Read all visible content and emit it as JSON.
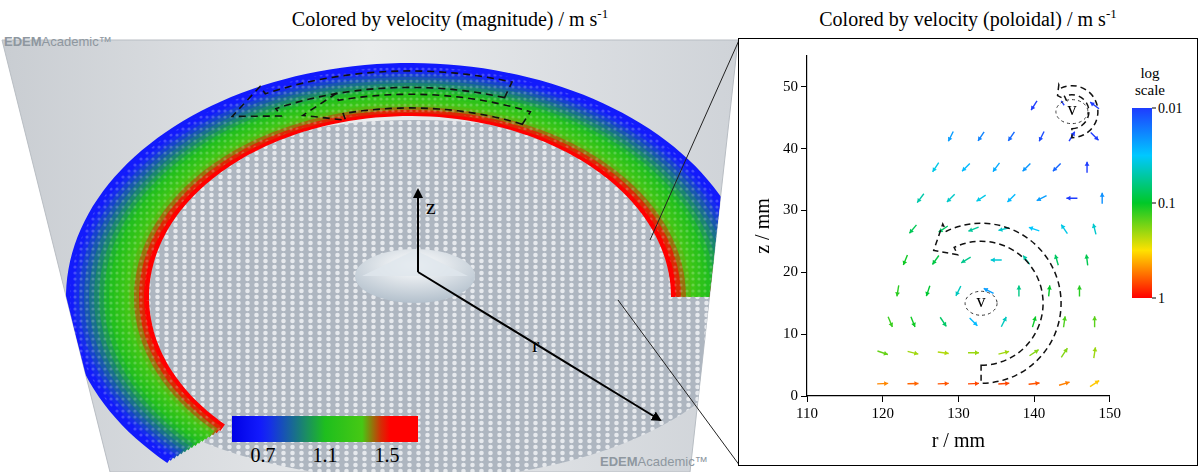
{
  "title_left": {
    "text": "Colored by velocity (magnitude) / m s",
    "superscript": "-1"
  },
  "title_right": {
    "text": "Colored by velocity (poloidal) / m s",
    "superscript": "-1"
  },
  "watermark": [
    "EDEM",
    "Academic™"
  ],
  "axes_3d": {
    "labels": [
      "z",
      "r"
    ]
  },
  "magnitude_colorbar": {
    "range": [
      0.5,
      1.7
    ],
    "ticks": [
      0.7,
      1.1,
      1.5
    ]
  },
  "chart_data": {
    "type": "quiver",
    "xlabel": "r / mm",
    "ylabel": "z / mm",
    "xlim": [
      110,
      150
    ],
    "ylim": [
      0,
      55
    ],
    "xticks": [
      110,
      120,
      130,
      140,
      150
    ],
    "yticks": [
      0,
      10,
      20,
      30,
      40,
      50
    ],
    "grid": false,
    "colorbar": {
      "title": "log scale",
      "log": true,
      "range": [
        0.01,
        1
      ],
      "ticks": [
        0.01,
        0.1,
        1
      ]
    },
    "annotations": [
      {
        "text": "v",
        "r": 133,
        "z": 15
      },
      {
        "text": "v",
        "r": 145,
        "z": 46
      }
    ],
    "vectors": [
      {
        "r": 120,
        "z": 2,
        "vr": 0.5,
        "vz": 0.02
      },
      {
        "r": 124,
        "z": 2,
        "vr": 0.6,
        "vz": 0.02
      },
      {
        "r": 128,
        "z": 2,
        "vr": 0.65,
        "vz": 0.03
      },
      {
        "r": 132,
        "z": 2,
        "vr": 0.7,
        "vz": 0.03
      },
      {
        "r": 136,
        "z": 2,
        "vr": 0.7,
        "vz": 0.05
      },
      {
        "r": 140,
        "z": 2,
        "vr": 0.65,
        "vz": 0.08
      },
      {
        "r": 144,
        "z": 2,
        "vr": 0.5,
        "vz": 0.15
      },
      {
        "r": 148,
        "z": 2,
        "vr": 0.3,
        "vz": 0.2
      },
      {
        "r": 120,
        "z": 7,
        "vr": 0.15,
        "vz": -0.05
      },
      {
        "r": 124,
        "z": 7,
        "vr": 0.2,
        "vz": -0.05
      },
      {
        "r": 128,
        "z": 7,
        "vr": 0.22,
        "vz": -0.03
      },
      {
        "r": 132,
        "z": 7,
        "vr": 0.2,
        "vz": 0.0
      },
      {
        "r": 136,
        "z": 7,
        "vr": 0.2,
        "vz": 0.05
      },
      {
        "r": 140,
        "z": 7,
        "vr": 0.15,
        "vz": 0.1
      },
      {
        "r": 144,
        "z": 7,
        "vr": 0.1,
        "vz": 0.15
      },
      {
        "r": 148,
        "z": 7,
        "vr": 0.03,
        "vz": 0.2
      },
      {
        "r": 121,
        "z": 12,
        "vr": 0.05,
        "vz": -0.12
      },
      {
        "r": 124,
        "z": 12,
        "vr": 0.04,
        "vz": -0.1
      },
      {
        "r": 128,
        "z": 12,
        "vr": 0.04,
        "vz": -0.06
      },
      {
        "r": 132,
        "z": 12,
        "vr": 0.02,
        "vz": -0.02
      },
      {
        "r": 136,
        "z": 12,
        "vr": 0.02,
        "vz": 0.04
      },
      {
        "r": 140,
        "z": 12,
        "vr": 0.03,
        "vz": 0.1
      },
      {
        "r": 144,
        "z": 12,
        "vr": 0.02,
        "vz": 0.14
      },
      {
        "r": 148,
        "z": 12,
        "vr": 0.0,
        "vz": 0.15
      },
      {
        "r": 122,
        "z": 17,
        "vr": -0.02,
        "vz": -0.12
      },
      {
        "r": 126,
        "z": 17,
        "vr": -0.03,
        "vz": -0.09
      },
      {
        "r": 130,
        "z": 17,
        "vr": -0.02,
        "vz": -0.04
      },
      {
        "r": 134,
        "z": 17,
        "vr": -0.02,
        "vz": 0.01
      },
      {
        "r": 138,
        "z": 17,
        "vr": 0.0,
        "vz": 0.06
      },
      {
        "r": 142,
        "z": 17,
        "vr": 0.01,
        "vz": 0.1
      },
      {
        "r": 146,
        "z": 17,
        "vr": 0.0,
        "vz": 0.12
      },
      {
        "r": 123,
        "z": 22,
        "vr": -0.04,
        "vz": -0.1
      },
      {
        "r": 127,
        "z": 22,
        "vr": -0.05,
        "vz": -0.07
      },
      {
        "r": 131,
        "z": 22,
        "vr": -0.05,
        "vz": -0.03
      },
      {
        "r": 135,
        "z": 22,
        "vr": -0.04,
        "vz": 0.0
      },
      {
        "r": 139,
        "z": 22,
        "vr": -0.03,
        "vz": 0.04
      },
      {
        "r": 143,
        "z": 22,
        "vr": -0.02,
        "vz": 0.07
      },
      {
        "r": 147,
        "z": 22,
        "vr": -0.01,
        "vz": 0.08
      },
      {
        "r": 124,
        "z": 27,
        "vr": -0.05,
        "vz": -0.06
      },
      {
        "r": 128,
        "z": 27,
        "vr": -0.06,
        "vz": -0.04
      },
      {
        "r": 132,
        "z": 27,
        "vr": -0.05,
        "vz": -0.02
      },
      {
        "r": 136,
        "z": 27,
        "vr": -0.04,
        "vz": -0.01
      },
      {
        "r": 140,
        "z": 27,
        "vr": -0.03,
        "vz": 0.01
      },
      {
        "r": 144,
        "z": 27,
        "vr": -0.02,
        "vz": 0.03
      },
      {
        "r": 148,
        "z": 27,
        "vr": -0.01,
        "vz": 0.04
      },
      {
        "r": 125,
        "z": 32,
        "vr": -0.03,
        "vz": -0.04
      },
      {
        "r": 129,
        "z": 32,
        "vr": -0.03,
        "vz": -0.03
      },
      {
        "r": 133,
        "z": 32,
        "vr": -0.03,
        "vz": -0.02
      },
      {
        "r": 137,
        "z": 32,
        "vr": -0.02,
        "vz": -0.02
      },
      {
        "r": 141,
        "z": 32,
        "vr": -0.02,
        "vz": -0.01
      },
      {
        "r": 145,
        "z": 32,
        "vr": -0.01,
        "vz": 0.0
      },
      {
        "r": 149,
        "z": 32,
        "vr": 0.0,
        "vz": 0.02
      },
      {
        "r": 127,
        "z": 37,
        "vr": -0.02,
        "vz": -0.03
      },
      {
        "r": 131,
        "z": 37,
        "vr": -0.02,
        "vz": -0.02
      },
      {
        "r": 135,
        "z": 37,
        "vr": -0.015,
        "vz": -0.02
      },
      {
        "r": 139,
        "z": 37,
        "vr": -0.015,
        "vz": -0.015
      },
      {
        "r": 143,
        "z": 37,
        "vr": -0.01,
        "vz": -0.01
      },
      {
        "r": 147,
        "z": 37,
        "vr": 0.0,
        "vz": 0.01
      },
      {
        "r": 129,
        "z": 42,
        "vr": -0.01,
        "vz": -0.02
      },
      {
        "r": 133,
        "z": 42,
        "vr": -0.01,
        "vz": -0.015
      },
      {
        "r": 137,
        "z": 42,
        "vr": -0.008,
        "vz": -0.012
      },
      {
        "r": 141,
        "z": 42,
        "vr": -0.005,
        "vz": -0.01
      },
      {
        "r": 145,
        "z": 42,
        "vr": 0.003,
        "vz": 0.005
      },
      {
        "r": 148,
        "z": 42,
        "vr": 0.005,
        "vz": -0.005
      },
      {
        "r": 140,
        "z": 47,
        "vr": -0.005,
        "vz": -0.008
      },
      {
        "r": 144,
        "z": 47,
        "vr": 0.004,
        "vz": -0.006
      },
      {
        "r": 148,
        "z": 47,
        "vr": -0.004,
        "vz": 0.003
      }
    ]
  }
}
